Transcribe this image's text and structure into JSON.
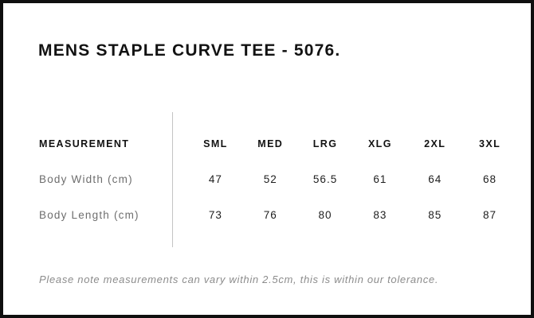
{
  "page": {
    "title": "MENS STAPLE CURVE TEE - 5076.",
    "note": "Please note measurements can vary within 2.5cm, this is within our tolerance."
  },
  "size_chart": {
    "measurement_header": "MEASUREMENT",
    "size_headers": [
      "SML",
      "MED",
      "LRG",
      "XLG",
      "2XL",
      "3XL"
    ],
    "rows": [
      {
        "label": "Body Width (cm)",
        "values": [
          "47",
          "52",
          "56.5",
          "61",
          "64",
          "68"
        ]
      },
      {
        "label": "Body Length (cm)",
        "values": [
          "73",
          "76",
          "80",
          "83",
          "85",
          "87"
        ]
      }
    ]
  },
  "colors": {
    "border": "#0f0f0f",
    "title_text": "#121212",
    "header_text": "#121212",
    "label_text": "#6e6e6e",
    "value_text": "#1e1e1e",
    "divider": "#c4c4c4",
    "note_text": "#8c8c8c",
    "background": "#ffffff"
  }
}
